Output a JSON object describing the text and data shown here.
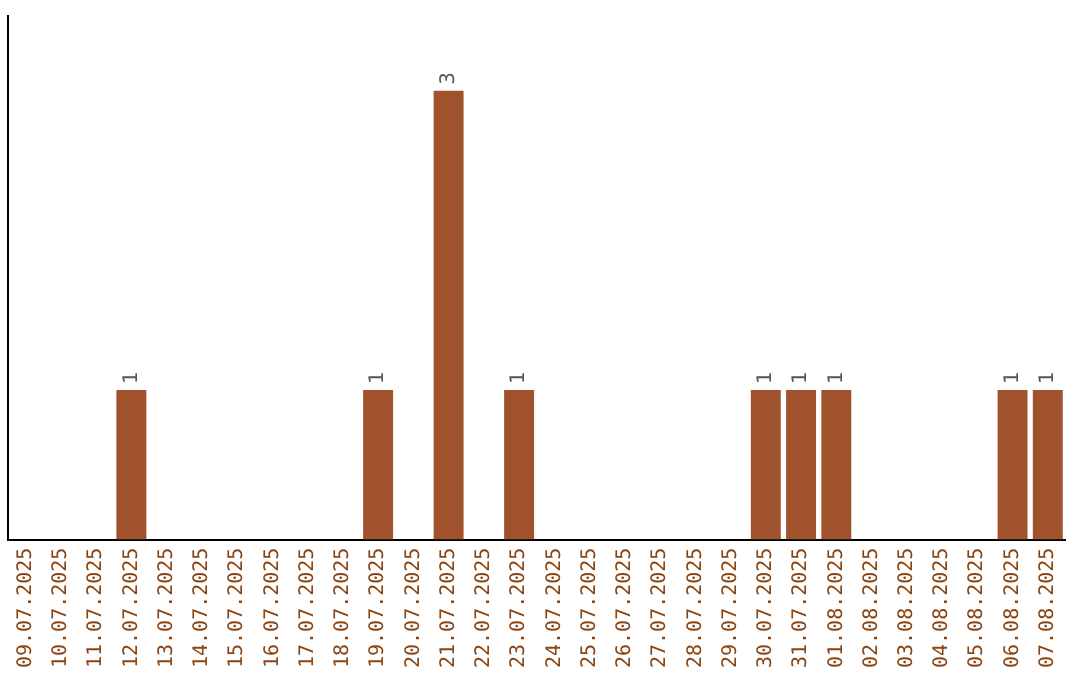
{
  "chart_data": {
    "type": "bar",
    "categories": [
      "09.07.2025",
      "10.07.2025",
      "11.07.2025",
      "12.07.2025",
      "13.07.2025",
      "14.07.2025",
      "15.07.2025",
      "16.07.2025",
      "17.07.2025",
      "18.07.2025",
      "19.07.2025",
      "20.07.2025",
      "21.07.2025",
      "22.07.2025",
      "23.07.2025",
      "24.07.2025",
      "25.07.2025",
      "26.07.2025",
      "27.07.2025",
      "28.07.2025",
      "29.07.2025",
      "30.07.2025",
      "31.07.2025",
      "01.08.2025",
      "02.08.2025",
      "03.08.2025",
      "04.08.2025",
      "05.08.2025",
      "06.08.2025",
      "07.08.2025"
    ],
    "values": [
      0,
      0,
      0,
      1,
      0,
      0,
      0,
      0,
      0,
      0,
      1,
      0,
      3,
      0,
      1,
      0,
      0,
      0,
      0,
      0,
      0,
      1,
      1,
      1,
      0,
      0,
      0,
      0,
      1,
      1
    ],
    "value_labels": [
      null,
      null,
      null,
      "1",
      null,
      null,
      null,
      null,
      null,
      null,
      "1",
      null,
      "3",
      null,
      "1",
      null,
      null,
      null,
      null,
      null,
      null,
      "1",
      "1",
      "1",
      null,
      null,
      null,
      null,
      "1",
      "1"
    ],
    "color": "#a0522d",
    "grid": false,
    "legend": false,
    "tick_labels": "x"
  }
}
